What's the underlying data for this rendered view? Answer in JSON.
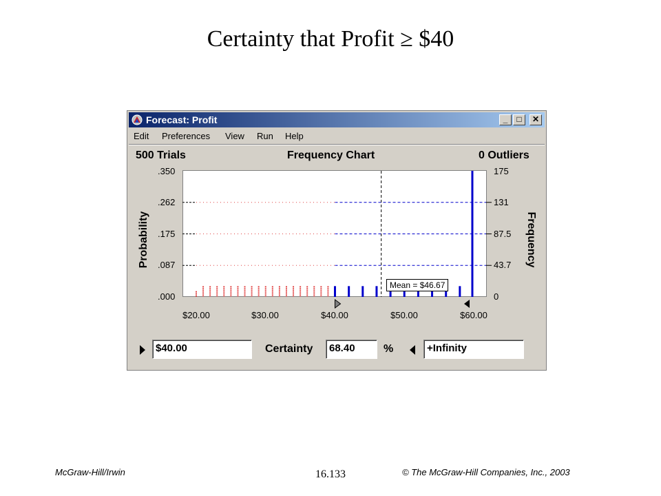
{
  "slide": {
    "title": "Certainty that Profit ≥ $40",
    "footer_left": "McGraw-Hill/Irwin",
    "footer_center": "16.133",
    "footer_right": "© The McGraw-Hill Companies, Inc., 2003"
  },
  "window": {
    "title": "Forecast: Profit",
    "minimize_label": "_",
    "maximize_label": "□",
    "close_label": "✕",
    "icon": "crystal-ball-app-icon"
  },
  "menu": [
    "Edit",
    "Preferences",
    "View",
    "Run",
    "Help"
  ],
  "header": {
    "trials": "500 Trials",
    "chart_name": "Frequency Chart",
    "outliers": "0 Outliers"
  },
  "controls": {
    "lower_value": "$40.00",
    "certainty_label": "Certainty",
    "certainty_value": "68.40",
    "percent": "%",
    "upper_value": "+Infinity"
  },
  "colors": {
    "in_range": "#0000cc",
    "out_of_range": "#e04040",
    "titlebar": "#0a246a"
  },
  "chart_data": {
    "type": "bar",
    "xlabel": "",
    "left_ylabel": "Probability",
    "right_ylabel": "Frequency",
    "x_ticks": [
      "$20.00",
      "$30.00",
      "$40.00",
      "$50.00",
      "$60.00"
    ],
    "x_tick_values": [
      20,
      30,
      40,
      50,
      60
    ],
    "xlim": [
      20,
      60
    ],
    "y_left_ticks": [
      ".000",
      ".087",
      ".175",
      ".262",
      ".350"
    ],
    "y_right_ticks": [
      "0",
      "43.7",
      "87.5",
      "131",
      "175"
    ],
    "ylim": [
      0,
      0.35
    ],
    "mean_label": "Mean = $46.67",
    "mean": 46.67,
    "certainty_range": [
      40,
      "+Infinity"
    ],
    "bars": [
      {
        "x": 20.0,
        "p": 0.016
      },
      {
        "x": 21.0,
        "p": 0.03
      },
      {
        "x": 22.0,
        "p": 0.03
      },
      {
        "x": 23.0,
        "p": 0.03
      },
      {
        "x": 24.0,
        "p": 0.03
      },
      {
        "x": 25.0,
        "p": 0.03
      },
      {
        "x": 26.0,
        "p": 0.03
      },
      {
        "x": 27.0,
        "p": 0.03
      },
      {
        "x": 28.0,
        "p": 0.03
      },
      {
        "x": 29.0,
        "p": 0.03
      },
      {
        "x": 30.0,
        "p": 0.03
      },
      {
        "x": 31.0,
        "p": 0.03
      },
      {
        "x": 32.0,
        "p": 0.03
      },
      {
        "x": 33.0,
        "p": 0.03
      },
      {
        "x": 34.0,
        "p": 0.03
      },
      {
        "x": 35.0,
        "p": 0.03
      },
      {
        "x": 36.0,
        "p": 0.03
      },
      {
        "x": 37.0,
        "p": 0.03
      },
      {
        "x": 38.0,
        "p": 0.03
      },
      {
        "x": 39.0,
        "p": 0.03
      },
      {
        "x": 40.0,
        "p": 0.03
      },
      {
        "x": 42.0,
        "p": 0.03
      },
      {
        "x": 44.0,
        "p": 0.03
      },
      {
        "x": 46.0,
        "p": 0.03
      },
      {
        "x": 48.0,
        "p": 0.03
      },
      {
        "x": 50.0,
        "p": 0.03
      },
      {
        "x": 52.0,
        "p": 0.03
      },
      {
        "x": 54.0,
        "p": 0.03
      },
      {
        "x": 56.0,
        "p": 0.03
      },
      {
        "x": 58.0,
        "p": 0.03
      },
      {
        "x": 59.8,
        "p": 0.35
      }
    ]
  }
}
